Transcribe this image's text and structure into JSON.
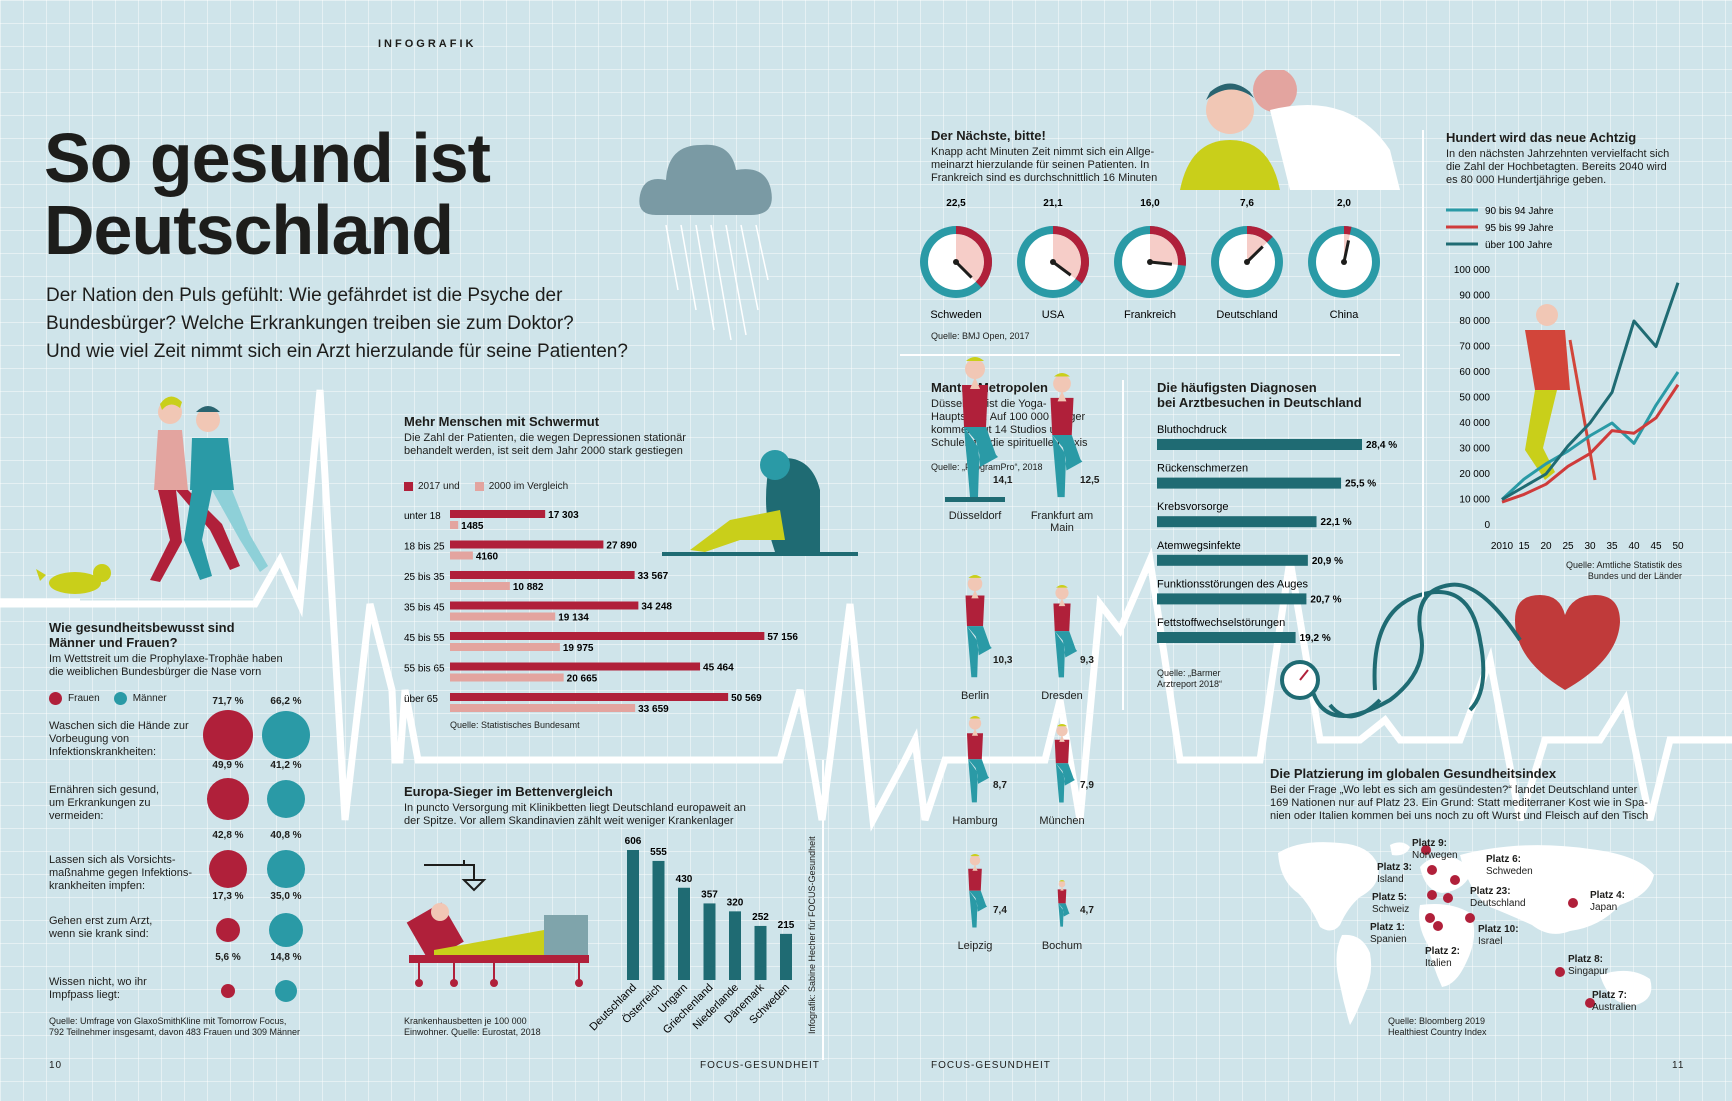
{
  "header": {
    "kicker": "INFOGRAFIK",
    "title_line1": "So gesund ist",
    "title_line2": "Deutschland",
    "lead": [
      "Der Nation den Puls gefühlt: Wie gefährdet ist die Psyche der",
      "Bundesbürger? Welche Erkrankungen treiben sie zum Doktor?",
      "Und wie viel Zeit nimmt sich ein Arzt hierzulande für seine Patienten?"
    ]
  },
  "colors": {
    "red": "#b0203a",
    "teal": "#2a9aa6",
    "dark_teal": "#1f6b73",
    "pink": "#e3a49f",
    "lime": "#c9cf1a",
    "bg": "#cfe4ea"
  },
  "health": {
    "title_line1": "Wie gesundheitsbewusst sind",
    "title_line2": "Männer und Frauen?",
    "text_line1": "Im Wettstreit um die Prophylaxe-Trophäe haben",
    "text_line2": "die weiblichen Bundesbürger die Nase vorn",
    "legend_women": "Frauen",
    "legend_men": "Männer",
    "rows": [
      {
        "label": [
          "Waschen sich die Hände zur",
          "Vorbeugung von",
          "Infektionskrankheiten:"
        ],
        "women": 71.7,
        "men": 66.2,
        "women_label": "71,7 %",
        "men_label": "66,2 %"
      },
      {
        "label": [
          "Ernähren sich gesund,",
          "um Erkrankungen zu",
          "vermeiden:"
        ],
        "women": 49.9,
        "men": 41.2,
        "women_label": "49,9 %",
        "men_label": "41,2 %"
      },
      {
        "label": [
          "Lassen sich als Vorsichts-",
          "maßnahme gegen Infektions-",
          "krankheiten impfen:"
        ],
        "women": 42.8,
        "men": 40.8,
        "women_label": "42,8 %",
        "men_label": "40,8 %"
      },
      {
        "label": [
          "Gehen erst zum Arzt,",
          "wenn sie krank sind:"
        ],
        "women": 17.3,
        "men": 35.0,
        "women_label": "17,3 %",
        "men_label": "35,0 %"
      },
      {
        "label": [
          "Wissen nicht, wo ihr",
          "Impfpass liegt:"
        ],
        "women": 5.6,
        "men": 14.8,
        "women_label": "5,6 %",
        "men_label": "14,8 %"
      }
    ],
    "source_line1": "Quelle: Umfrage von GlaxoSmithKline mit Tomorrow Focus,",
    "source_line2": "792 Teilnehmer insgesamt, davon 483 Frauen und 309 Männer"
  },
  "chart_data": [
    {
      "id": "depression",
      "type": "bar",
      "title": "Mehr Menschen mit Schwermut",
      "subtitle_line1": "Die Zahl der Patienten, die wegen Depressionen stationär",
      "subtitle_line2": "behandelt werden, ist seit dem Jahr 2000 stark gestiegen",
      "categories": [
        "unter 18",
        "18 bis 25",
        "25 bis 35",
        "35 bis 45",
        "45 bis 55",
        "55 bis 65",
        "über 65"
      ],
      "series": [
        {
          "name": "2017 und",
          "values": [
            17303,
            27890,
            33567,
            34248,
            57156,
            45464,
            50569
          ],
          "labels": [
            "17 303",
            "27 890",
            "33 567",
            "34 248",
            "57 156",
            "45 464",
            "50 569"
          ]
        },
        {
          "name": "2000 im Vergleich",
          "values": [
            1485,
            4160,
            10882,
            19134,
            19975,
            20665,
            33659
          ],
          "labels": [
            "1485",
            "4160",
            "10 882",
            "19 134",
            "19 975",
            "20 665",
            "33 659"
          ]
        }
      ],
      "source": "Quelle: Statistisches Bundesamt"
    },
    {
      "id": "beds",
      "type": "bar",
      "title": "Europa-Sieger im Bettenvergleich",
      "subtitle_line1": "In puncto Versorgung mit Klinikbetten liegt Deutschland europaweit an",
      "subtitle_line2": "der Spitze. Vor allem Skandinavien zählt weit weniger Krankenlager",
      "categories": [
        "Deutschland",
        "Österreich",
        "Ungarn",
        "Griechenland",
        "Niederlande",
        "Dänemark",
        "Schweden"
      ],
      "values": [
        606,
        555,
        430,
        357,
        320,
        252,
        215
      ],
      "source_line1": "Krankenhausbetten je 100 000",
      "source_line2": "Einwohner. Quelle: Eurostat, 2018"
    },
    {
      "id": "doctor",
      "type": "pie",
      "title": "Der Nächste, bitte!",
      "subtitle_line1": "Knapp acht Minuten Zeit nimmt sich ein Allge-",
      "subtitle_line2": "meinarzt hierzulande für seinen Patienten. In",
      "subtitle_line3": "Frankreich sind es durchschnittlich 16 Minuten",
      "categories": [
        "Schweden",
        "USA",
        "Frankreich",
        "Deutschland",
        "China"
      ],
      "values": [
        22.5,
        21.1,
        16.0,
        7.6,
        2.0
      ],
      "labels": [
        "22,5",
        "21,1",
        "16,0",
        "7,6",
        "2,0"
      ],
      "source": "Quelle: BMJ Open, 2017"
    },
    {
      "id": "yoga",
      "type": "bar",
      "title": "Mantra-Metropolen",
      "subtitle_line1": "Düsseldorf ist die Yoga-",
      "subtitle_line2": "Hauptstadt. Auf 100 000 Bürger",
      "subtitle_line3": "kommen gut 14 Studios und",
      "subtitle_line4": "Schulen für die spirituelle Praxis",
      "source": "Quelle: „FitogramPro“, 2018",
      "items": [
        {
          "city": "Düsseldorf",
          "city2": "",
          "value": 14.1,
          "label": "14,1"
        },
        {
          "city": "Frankfurt am",
          "city2": "Main",
          "value": 12.5,
          "label": "12,5"
        },
        {
          "city": "Berlin",
          "city2": "",
          "value": 10.3,
          "label": "10,3"
        },
        {
          "city": "Dresden",
          "city2": "",
          "value": 9.3,
          "label": "9,3"
        },
        {
          "city": "Hamburg",
          "city2": "",
          "value": 8.7,
          "label": "8,7"
        },
        {
          "city": "München",
          "city2": "",
          "value": 7.9,
          "label": "7,9"
        },
        {
          "city": "Leipzig",
          "city2": "",
          "value": 7.4,
          "label": "7,4"
        },
        {
          "city": "Bochum",
          "city2": "",
          "value": 4.7,
          "label": "4,7"
        }
      ]
    },
    {
      "id": "diagnoses",
      "type": "bar",
      "title_line1": "Die häufigsten Diagnosen",
      "title_line2": "bei Arztbesuchen in Deutschland",
      "categories": [
        "Bluthochdruck",
        "Rückenschmerzen",
        "Krebsvorsorge",
        "Atemwegsinfekte",
        "Funktionsstörungen des Auges",
        "Fettstoffwechselstörungen"
      ],
      "values": [
        28.4,
        25.5,
        22.1,
        20.9,
        20.7,
        19.2
      ],
      "labels": [
        "28,4 %",
        "25,5 %",
        "22,1 %",
        "20,9 %",
        "20,7 %",
        "19,2 %"
      ],
      "source_line1": "Quelle: „Barmer",
      "source_line2": "Arztreport 2018“"
    },
    {
      "id": "centenarians",
      "type": "line",
      "title": "Hundert wird das neue Achtzig",
      "subtitle_line1": "In den nächsten Jahrzehnten vervielfacht sich",
      "subtitle_line2": "die Zahl der Hochbetagten. Bereits 2040 wird",
      "subtitle_line3": "es 80 000 Hundertjährige geben.",
      "x": [
        2010,
        2015,
        2020,
        2025,
        2030,
        2035,
        2040,
        2045,
        2050
      ],
      "x_tick_labels": [
        "2010",
        "15",
        "20",
        "25",
        "30",
        "35",
        "40",
        "45",
        "50"
      ],
      "y_ticks": [
        0,
        10000,
        20000,
        30000,
        40000,
        50000,
        60000,
        70000,
        80000,
        90000,
        100000
      ],
      "y_tick_labels": [
        "0",
        "10 000",
        "20 000",
        "30 000",
        "40 000",
        "50 000",
        "60 000",
        "70 000",
        "80 000",
        "90 000",
        "100 000"
      ],
      "ylim": [
        0,
        100000
      ],
      "series": [
        {
          "name": "90 bis 94 Jahre",
          "color": "#2a9aa6",
          "values": [
            10000,
            18000,
            24000,
            29000,
            35000,
            40000,
            32000,
            47000,
            60000
          ]
        },
        {
          "name": "95 bis 99 Jahre",
          "color": "#cf3b3b",
          "values": [
            9000,
            12000,
            16000,
            23000,
            28000,
            37000,
            36000,
            42000,
            55000
          ]
        },
        {
          "name": "über 100 Jahre",
          "color": "#1f6b73",
          "values": [
            10000,
            15000,
            20000,
            31000,
            40000,
            52000,
            80000,
            70000,
            95000
          ]
        }
      ],
      "source_line1": "Quelle: Amtliche Statistik des",
      "source_line2": "Bundes und der Länder"
    }
  ],
  "index": {
    "title": "Die Platzierung im globalen Gesundheitsindex",
    "text_line1": "Bei der Frage „Wo lebt es sich am gesündesten?“ landet Deutschland unter",
    "text_line2": "169 Nationen nur auf Platz 23. Ein Grund: Statt mediterraner Kost wie in Spa-",
    "text_line3": "nien oder Italien kommen bei uns noch zu oft Wurst und Fleisch auf den Tisch",
    "places": [
      {
        "rank": "Platz 9:",
        "country": "Norwegen"
      },
      {
        "rank": "Platz 3:",
        "country": "Island"
      },
      {
        "rank": "Platz 6:",
        "country": "Schweden"
      },
      {
        "rank": "Platz 5:",
        "country": "Schweiz"
      },
      {
        "rank": "Platz 23:",
        "country": "Deutschland"
      },
      {
        "rank": "Platz 1:",
        "country": "Spanien"
      },
      {
        "rank": "Platz 10:",
        "country": "Israel"
      },
      {
        "rank": "Platz 2:",
        "country": "Italien"
      },
      {
        "rank": "Platz 4:",
        "country": "Japan"
      },
      {
        "rank": "Platz 8:",
        "country": "Singapur"
      },
      {
        "rank": "Platz 7:",
        "country": "Australien"
      }
    ],
    "source_line1": "Quelle: Bloomberg 2019",
    "source_line2": "Healthiest Country Index"
  },
  "credit": "Infografik: Sabine Hecher für FOCUS-Gesundheit",
  "footer": {
    "page_left": "10",
    "page_right": "11",
    "mag_left": "FOCUS-GESUNDHEIT",
    "mag_right": "FOCUS-GESUNDHEIT"
  }
}
